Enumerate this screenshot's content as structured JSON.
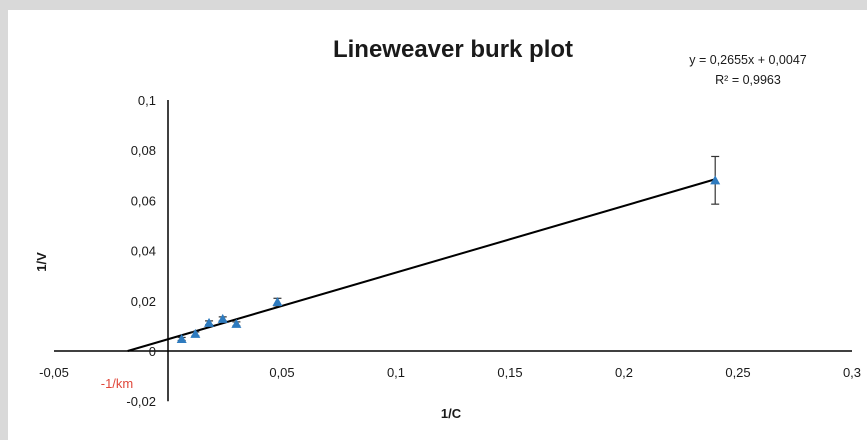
{
  "chart_data": {
    "type": "scatter",
    "title": "Lineweaver burk plot",
    "xlabel": "1/C",
    "ylabel": "1/V",
    "xlim": [
      -0.05,
      0.3
    ],
    "ylim": [
      -0.02,
      0.1
    ],
    "x_ticks": [
      -0.05,
      0,
      0.05,
      0.1,
      0.15,
      0.2,
      0.25,
      0.3
    ],
    "x_tick_labels": [
      "-0,05",
      "",
      "0,05",
      "0,1",
      "0,15",
      "0,2",
      "0,25",
      "0,3"
    ],
    "y_ticks": [
      -0.02,
      0,
      0.02,
      0.04,
      0.06,
      0.08,
      0.1
    ],
    "y_tick_labels": [
      "-0,02",
      "0",
      "0,02",
      "0,04",
      "0,06",
      "0,08",
      "0,1"
    ],
    "grid": false,
    "legend": "none",
    "series": [
      {
        "marker": "triangle",
        "color": "#2e7bbf",
        "x": [
          0.006,
          0.012,
          0.018,
          0.024,
          0.03,
          0.048,
          0.24
        ],
        "y": [
          0.0048,
          0.0068,
          0.0112,
          0.0128,
          0.0108,
          0.0195,
          0.068
        ],
        "error": [
          0.0006,
          0.0008,
          0.0008,
          0.0008,
          0.0008,
          0.0015,
          0.0095
        ]
      }
    ],
    "trendline": {
      "type": "linear",
      "slope": 0.2655,
      "intercept": 0.0047,
      "x_range": [
        -0.0177,
        0.24
      ],
      "color": "#000000",
      "equation": "y = 0,2655x + 0,0047",
      "r_squared": "R² = 0,9963"
    },
    "annotations": [
      {
        "text": "-1/km",
        "color": "#e0473a",
        "at_x": -0.0177
      }
    ]
  }
}
